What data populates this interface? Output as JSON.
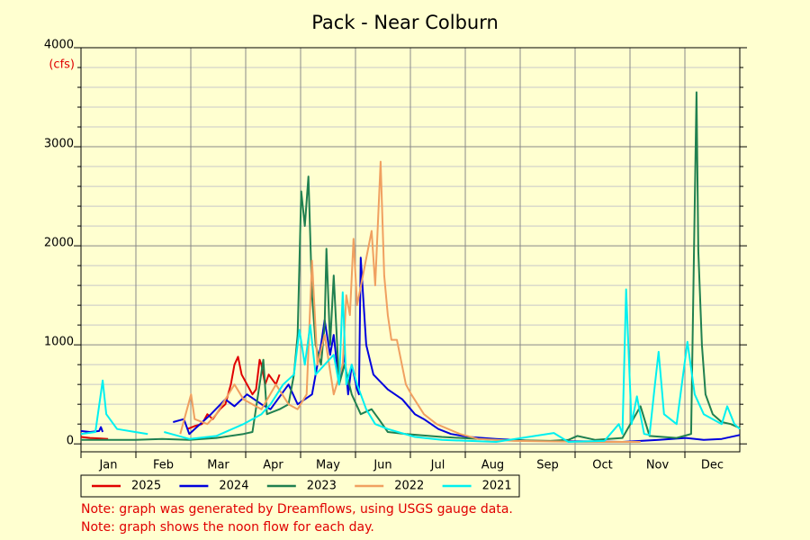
{
  "chart_data": {
    "type": "line",
    "title": "Pack - Near Colburn",
    "y_unit": "(cfs)",
    "categories": [
      "Jan",
      "Feb",
      "Mar",
      "Apr",
      "May",
      "Jun",
      "Jul",
      "Aug",
      "Sep",
      "Oct",
      "Nov",
      "Dec"
    ],
    "xlim": [
      0,
      365
    ],
    "ylim": [
      -80,
      4000
    ],
    "yticks": [
      0,
      1000,
      2000,
      3000,
      4000
    ],
    "yticks_minor": [
      200,
      400,
      600,
      800,
      1200,
      1400,
      1600,
      1800,
      2200,
      2400,
      2600,
      2800,
      3200,
      3400,
      3600,
      3800
    ],
    "grid": true,
    "legend": "bottom",
    "series": [
      {
        "name": "2025",
        "color": "#e00000",
        "x": [
          0,
          5,
          10,
          15,
          16,
          59,
          63,
          67,
          70,
          73,
          77,
          80,
          83,
          85,
          87,
          89,
          92,
          95,
          97,
          99,
          100,
          102,
          104,
          106,
          108,
          110
        ],
        "values": [
          70,
          60,
          55,
          50,
          null,
          150,
          180,
          200,
          300,
          250,
          350,
          400,
          600,
          800,
          880,
          700,
          600,
          500,
          550,
          850,
          800,
          600,
          700,
          650,
          600,
          700
        ]
      },
      {
        "name": "2024",
        "color": "#0000dd",
        "x": [
          0,
          5,
          10,
          11,
          12,
          13,
          51,
          57,
          60,
          72,
          80,
          85,
          92,
          100,
          105,
          115,
          120,
          128,
          133,
          135,
          138,
          140,
          143,
          146,
          148,
          150,
          153,
          154,
          155,
          158,
          162,
          170,
          178,
          185,
          190,
          198,
          205,
          215,
          230,
          250,
          280,
          300,
          310,
          320,
          335,
          345,
          355,
          365
        ],
        "values": [
          130,
          120,
          130,
          170,
          120,
          null,
          220,
          250,
          100,
          300,
          450,
          380,
          500,
          400,
          350,
          600,
          400,
          500,
          1000,
          1250,
          900,
          1100,
          600,
          900,
          500,
          800,
          550,
          500,
          1880,
          1000,
          700,
          550,
          450,
          300,
          250,
          150,
          100,
          70,
          50,
          30,
          25,
          20,
          30,
          40,
          60,
          40,
          50,
          90
        ]
      },
      {
        "name": "2023",
        "color": "#208050",
        "x": [
          0,
          30,
          45,
          60,
          75,
          90,
          95,
          101,
          103,
          110,
          115,
          118,
          120,
          122,
          124,
          126,
          128,
          130,
          133,
          135,
          136,
          138,
          140,
          143,
          146,
          150,
          155,
          161,
          165,
          170,
          180,
          200,
          230,
          260,
          270,
          275,
          285,
          300,
          310,
          315,
          330,
          338,
          341,
          342,
          344,
          346,
          350,
          355,
          360,
          365
        ],
        "values": [
          40,
          40,
          50,
          40,
          60,
          100,
          120,
          850,
          300,
          350,
          400,
          700,
          1100,
          2550,
          2200,
          2700,
          1500,
          1000,
          800,
          1200,
          1970,
          1000,
          1700,
          600,
          800,
          500,
          300,
          350,
          250,
          120,
          100,
          70,
          40,
          30,
          40,
          80,
          40,
          60,
          380,
          80,
          60,
          100,
          3550,
          1950,
          1000,
          500,
          300,
          220,
          200,
          160
        ]
      },
      {
        "name": "2022",
        "color": "#f0a060",
        "x": [
          55,
          61,
          63,
          70,
          75,
          85,
          90,
          100,
          108,
          115,
          120,
          125,
          128,
          131,
          135,
          140,
          145,
          147,
          149,
          151,
          153,
          161,
          163,
          166,
          168,
          170,
          172,
          175,
          180,
          183,
          190,
          197,
          210,
          220,
          240,
          280,
          310
        ],
        "values": [
          100,
          500,
          250,
          200,
          300,
          600,
          450,
          350,
          600,
          400,
          350,
          500,
          1850,
          800,
          1100,
          500,
          800,
          1500,
          1300,
          2070,
          1400,
          2150,
          1600,
          2850,
          1700,
          1300,
          1050,
          1050,
          600,
          500,
          300,
          200,
          100,
          50,
          30,
          20,
          20
        ]
      },
      {
        "name": "2021",
        "color": "#00f0f0",
        "x": [
          0,
          8,
          12,
          14,
          20,
          30,
          37,
          38,
          46,
          50,
          60,
          75,
          90,
          100,
          105,
          112,
          118,
          121,
          124,
          127,
          130,
          135,
          140,
          143,
          145,
          147,
          150,
          153,
          158,
          163,
          170,
          185,
          200,
          230,
          262,
          270,
          290,
          298,
          300,
          302,
          305,
          308,
          312,
          315,
          318,
          320,
          323,
          330,
          336,
          340,
          345,
          355,
          358,
          362,
          365
        ],
        "values": [
          100,
          120,
          640,
          300,
          150,
          120,
          100,
          null,
          120,
          100,
          50,
          80,
          200,
          300,
          400,
          600,
          700,
          1150,
          800,
          1200,
          700,
          800,
          900,
          600,
          1530,
          600,
          800,
          600,
          350,
          200,
          150,
          70,
          40,
          20,
          110,
          20,
          30,
          200,
          100,
          1560,
          200,
          480,
          100,
          90,
          600,
          930,
          300,
          200,
          1030,
          500,
          300,
          200,
          380,
          200,
          150
        ]
      }
    ],
    "notes": [
      "Note: graph was generated by Dreamflows, using USGS gauge data.",
      "Note: graph shows the noon flow for each day."
    ]
  }
}
